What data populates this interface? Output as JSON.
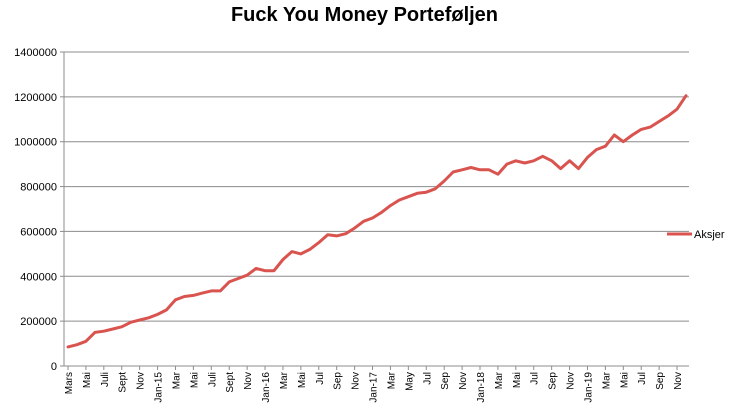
{
  "chart_data": {
    "type": "line",
    "title": "Fuck You Money Porteføljen",
    "xlabel": "",
    "ylabel": "",
    "ylim": [
      0,
      1400000
    ],
    "yticks": [
      "0",
      "200000",
      "400000",
      "600000",
      "800000",
      "1000000",
      "1200000",
      "1400000"
    ],
    "grid": true,
    "legend_position": "right",
    "x_tick_labels": [
      "Mars",
      "Mai",
      "Juli",
      "Sept",
      "Nov",
      "Jan-15",
      "Mar",
      "Mai",
      "Juli",
      "Sept",
      "Nov",
      "Jan-16",
      "Mar",
      "Mai",
      "Jul",
      "Sep",
      "Nov",
      "Jan-17",
      "Mar",
      "May",
      "Jul",
      "Sep",
      "Nov",
      "Jan-18",
      "Mar",
      "Mai",
      "Jul",
      "Sep",
      "Nov",
      "Jan-19",
      "Mar",
      "Mai",
      "Jul",
      "Sep",
      "Nov"
    ],
    "series": [
      {
        "name": "Aksjer",
        "color": "#d9534f",
        "values": [
          85000,
          95000,
          110000,
          150000,
          155000,
          165000,
          175000,
          195000,
          205000,
          215000,
          230000,
          250000,
          295000,
          310000,
          315000,
          325000,
          335000,
          335000,
          375000,
          390000,
          405000,
          435000,
          425000,
          425000,
          475000,
          510000,
          500000,
          520000,
          550000,
          585000,
          580000,
          590000,
          615000,
          645000,
          660000,
          685000,
          715000,
          740000,
          755000,
          770000,
          775000,
          790000,
          825000,
          865000,
          875000,
          885000,
          875000,
          875000,
          855000,
          900000,
          915000,
          905000,
          915000,
          935000,
          915000,
          880000,
          915000,
          880000,
          930000,
          965000,
          980000,
          1030000,
          1000000,
          1030000,
          1055000,
          1065000,
          1090000,
          1115000,
          1145000,
          1205000
        ]
      }
    ]
  }
}
